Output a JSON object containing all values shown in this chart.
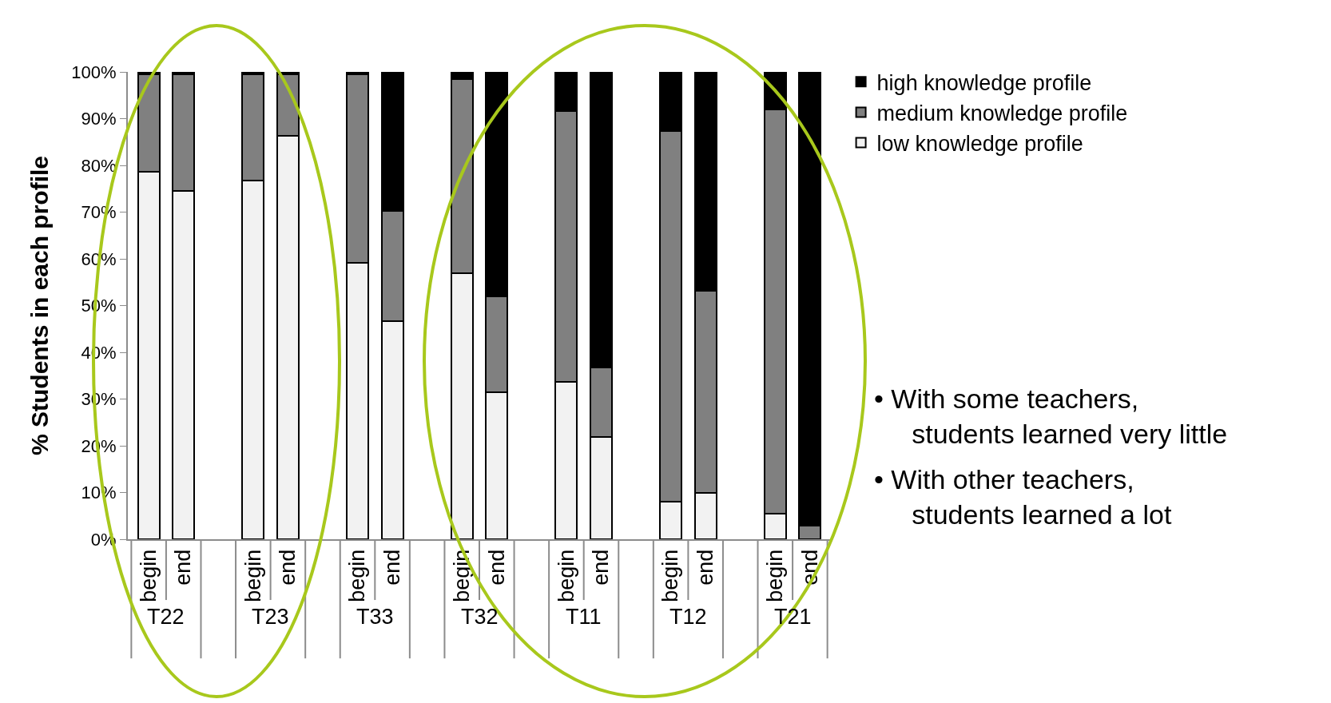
{
  "chart_data": {
    "type": "bar",
    "stacked": true,
    "ylabel": "% Students in each profile",
    "categories": [
      "begin",
      "end",
      null,
      "begin",
      "end",
      null,
      "begin",
      "end",
      null,
      "begin",
      "end",
      null,
      "begin",
      "end",
      null,
      "begin",
      "end",
      null,
      "begin",
      "end"
    ],
    "series": [
      {
        "name": "low knowledge profile",
        "color": "#f2f2f2",
        "values": [
          78.6,
          74.5,
          null,
          76.8,
          86.4,
          null,
          59.1,
          46.6,
          null,
          57.0,
          31.4,
          null,
          33.7,
          21.9,
          null,
          8.1,
          10.0,
          null,
          5.4,
          0
        ]
      },
      {
        "name": "medium knowledge profile",
        "color": "#808080",
        "values": [
          20.9,
          25.0,
          null,
          22.7,
          13.1,
          null,
          40.4,
          23.7,
          null,
          41.4,
          20.5,
          null,
          58.0,
          14.8,
          null,
          79.3,
          43.2,
          null,
          86.6,
          2.9
        ]
      },
      {
        "name": "high knowledge profile",
        "color": "#000000",
        "values": [
          0.5,
          0.5,
          null,
          0.5,
          0.5,
          null,
          0.5,
          29.7,
          null,
          1.6,
          48.1,
          null,
          8.3,
          63.3,
          null,
          12.6,
          46.8,
          null,
          8.0,
          97.1
        ]
      }
    ],
    "ylim": [
      0,
      100
    ],
    "yticks": [
      {
        "value": 0,
        "label": "0%"
      },
      {
        "value": 10,
        "label": "10%"
      },
      {
        "value": 20,
        "label": "20%"
      },
      {
        "value": 30,
        "label": "30%"
      },
      {
        "value": 40,
        "label": "40%"
      },
      {
        "value": 50,
        "label": "50%"
      },
      {
        "value": 60,
        "label": "60%"
      },
      {
        "value": 70,
        "label": "70%"
      },
      {
        "value": 80,
        "label": "80%"
      },
      {
        "value": 90,
        "label": "90%"
      },
      {
        "value": 100,
        "label": "100%"
      }
    ],
    "annotations": [
      "T22",
      "T23",
      "T33",
      "T32",
      "T11",
      "T12",
      "T21",
      "• With some teachers, students learned very little",
      "• With other teachers, students learned a lot"
    ],
    "legend": "top right"
  }
}
